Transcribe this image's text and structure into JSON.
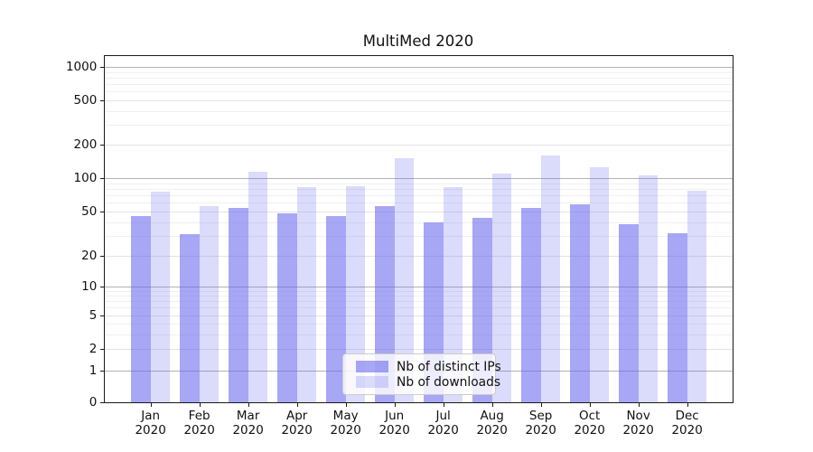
{
  "title": "MultiMed 2020",
  "chart_data": {
    "type": "bar",
    "title": "MultiMed 2020",
    "categories": [
      "Jan 2020",
      "Feb 2020",
      "Mar 2020",
      "Apr 2020",
      "May 2020",
      "Jun 2020",
      "Jul 2020",
      "Aug 2020",
      "Sep 2020",
      "Oct 2020",
      "Nov 2020",
      "Dec 2020"
    ],
    "series": [
      {
        "name": "Nb of distinct IPs",
        "color": "rgba(100,100,238,0.57)",
        "values": [
          45,
          31,
          54,
          48,
          45,
          56,
          40,
          44,
          54,
          58,
          38,
          32
        ]
      },
      {
        "name": "Nb of downloads",
        "color": "rgba(100,100,238,0.23)",
        "values": [
          75,
          56,
          114,
          82,
          85,
          150,
          83,
          110,
          160,
          126,
          106,
          77
        ]
      }
    ],
    "xlabel": "",
    "ylabel": "",
    "yscale": "symlog",
    "yticks": [
      0,
      1,
      2,
      5,
      10,
      20,
      50,
      100,
      200,
      500,
      1000
    ],
    "ylim": [
      0,
      1400
    ],
    "grid": "horizontal, log minor gridlines",
    "legend_position": "lower center inside plot",
    "bar_style": "paired bars per month, same hue two alphas"
  }
}
